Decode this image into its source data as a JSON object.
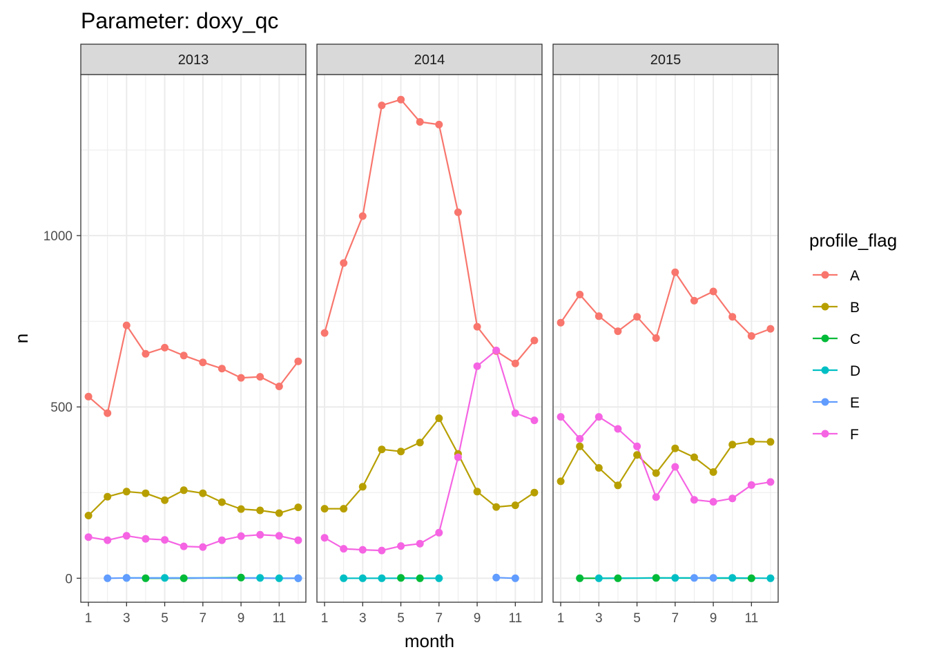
{
  "chart_data": {
    "type": "line",
    "title": "Parameter:  doxy_qc",
    "xlabel": "month",
    "ylabel": "n",
    "x_ticks": [
      1,
      3,
      5,
      7,
      9,
      11
    ],
    "x_range": [
      0.6,
      12.4
    ],
    "y_ticks": [
      0,
      500,
      1000
    ],
    "y_range": [
      -70,
      1470
    ],
    "grid": true,
    "legend": {
      "title": "profile_flag",
      "position": "right"
    },
    "colors": {
      "A": "#F8766D",
      "B": "#B79F00",
      "C": "#00BA38",
      "D": "#00BFC4",
      "E": "#619CFF",
      "F": "#F564E3"
    },
    "flags": [
      "A",
      "B",
      "C",
      "D",
      "E",
      "F"
    ],
    "panels": [
      {
        "label": "2013",
        "series": [
          {
            "name": "A",
            "x": [
              1,
              2,
              3,
              4,
              5,
              6,
              7,
              8,
              9,
              10,
              11,
              12
            ],
            "values": [
              530,
              482,
              738,
              655,
              673,
              650,
              630,
              612,
              585,
              588,
              560,
              633
            ]
          },
          {
            "name": "B",
            "x": [
              1,
              2,
              3,
              4,
              5,
              6,
              7,
              8,
              9,
              10,
              11,
              12
            ],
            "values": [
              183,
              238,
              253,
              248,
              228,
              257,
              248,
              222,
              202,
              198,
              190,
              207
            ]
          },
          {
            "name": "C",
            "x": [
              4,
              6,
              9
            ],
            "values": [
              0,
              0,
              2
            ]
          },
          {
            "name": "D",
            "x": [
              3,
              5,
              10,
              11,
              12
            ],
            "values": [
              1,
              1,
              1,
              0,
              0
            ]
          },
          {
            "name": "E",
            "x": [
              2,
              3,
              12
            ],
            "values": [
              0,
              1,
              0
            ]
          },
          {
            "name": "F",
            "x": [
              1,
              2,
              3,
              4,
              5,
              6,
              7,
              8,
              9,
              10,
              11,
              12
            ],
            "values": [
              120,
              111,
              124,
              115,
              112,
              93,
              91,
              111,
              123,
              127,
              124,
              111
            ]
          }
        ]
      },
      {
        "label": "2014",
        "series": [
          {
            "name": "A",
            "x": [
              1,
              2,
              3,
              4,
              5,
              6,
              7,
              8,
              9,
              10,
              11,
              12
            ],
            "values": [
              716,
              920,
              1057,
              1380,
              1397,
              1332,
              1324,
              1068,
              734,
              663,
              627,
              694
            ]
          },
          {
            "name": "B",
            "x": [
              1,
              2,
              3,
              4,
              5,
              6,
              7,
              8,
              9,
              10,
              11,
              12
            ],
            "values": [
              203,
              203,
              267,
              376,
              370,
              396,
              467,
              363,
              253,
              208,
              213,
              250
            ]
          },
          {
            "name": "C",
            "x": [
              5,
              6
            ],
            "values": [
              1,
              0
            ]
          },
          {
            "name": "D",
            "x": [
              2,
              3,
              4,
              7
            ],
            "values": [
              0,
              0,
              0,
              0
            ]
          },
          {
            "name": "E",
            "x": [
              10,
              11
            ],
            "values": [
              2,
              0
            ]
          },
          {
            "name": "F",
            "x": [
              1,
              2,
              3,
              4,
              5,
              6,
              7,
              8,
              9,
              10,
              11,
              12
            ],
            "values": [
              118,
              86,
              83,
              81,
              94,
              101,
              133,
              353,
              619,
              665,
              482,
              461
            ]
          }
        ]
      },
      {
        "label": "2015",
        "series": [
          {
            "name": "A",
            "x": [
              1,
              2,
              3,
              4,
              5,
              6,
              7,
              8,
              9,
              10,
              11,
              12
            ],
            "values": [
              746,
              828,
              765,
              721,
              763,
              701,
              893,
              810,
              837,
              763,
              707,
              728
            ]
          },
          {
            "name": "B",
            "x": [
              1,
              2,
              3,
              4,
              5,
              6,
              7,
              8,
              9,
              10,
              11,
              12
            ],
            "values": [
              283,
              385,
              322,
              271,
              360,
              307,
              379,
              353,
              310,
              390,
              399,
              398
            ]
          },
          {
            "name": "C",
            "x": [
              2,
              4,
              6,
              11
            ],
            "values": [
              0,
              0,
              1,
              0
            ]
          },
          {
            "name": "D",
            "x": [
              3,
              7,
              10,
              12
            ],
            "values": [
              0,
              1,
              1,
              0
            ]
          },
          {
            "name": "E",
            "x": [
              8,
              9
            ],
            "values": [
              1,
              1
            ]
          },
          {
            "name": "F",
            "x": [
              1,
              2,
              3,
              4,
              5,
              6,
              7,
              8,
              9,
              10,
              11,
              12
            ],
            "values": [
              471,
              407,
              471,
              436,
              385,
              237,
              325,
              229,
              223,
              233,
              272,
              281
            ]
          }
        ]
      }
    ]
  }
}
